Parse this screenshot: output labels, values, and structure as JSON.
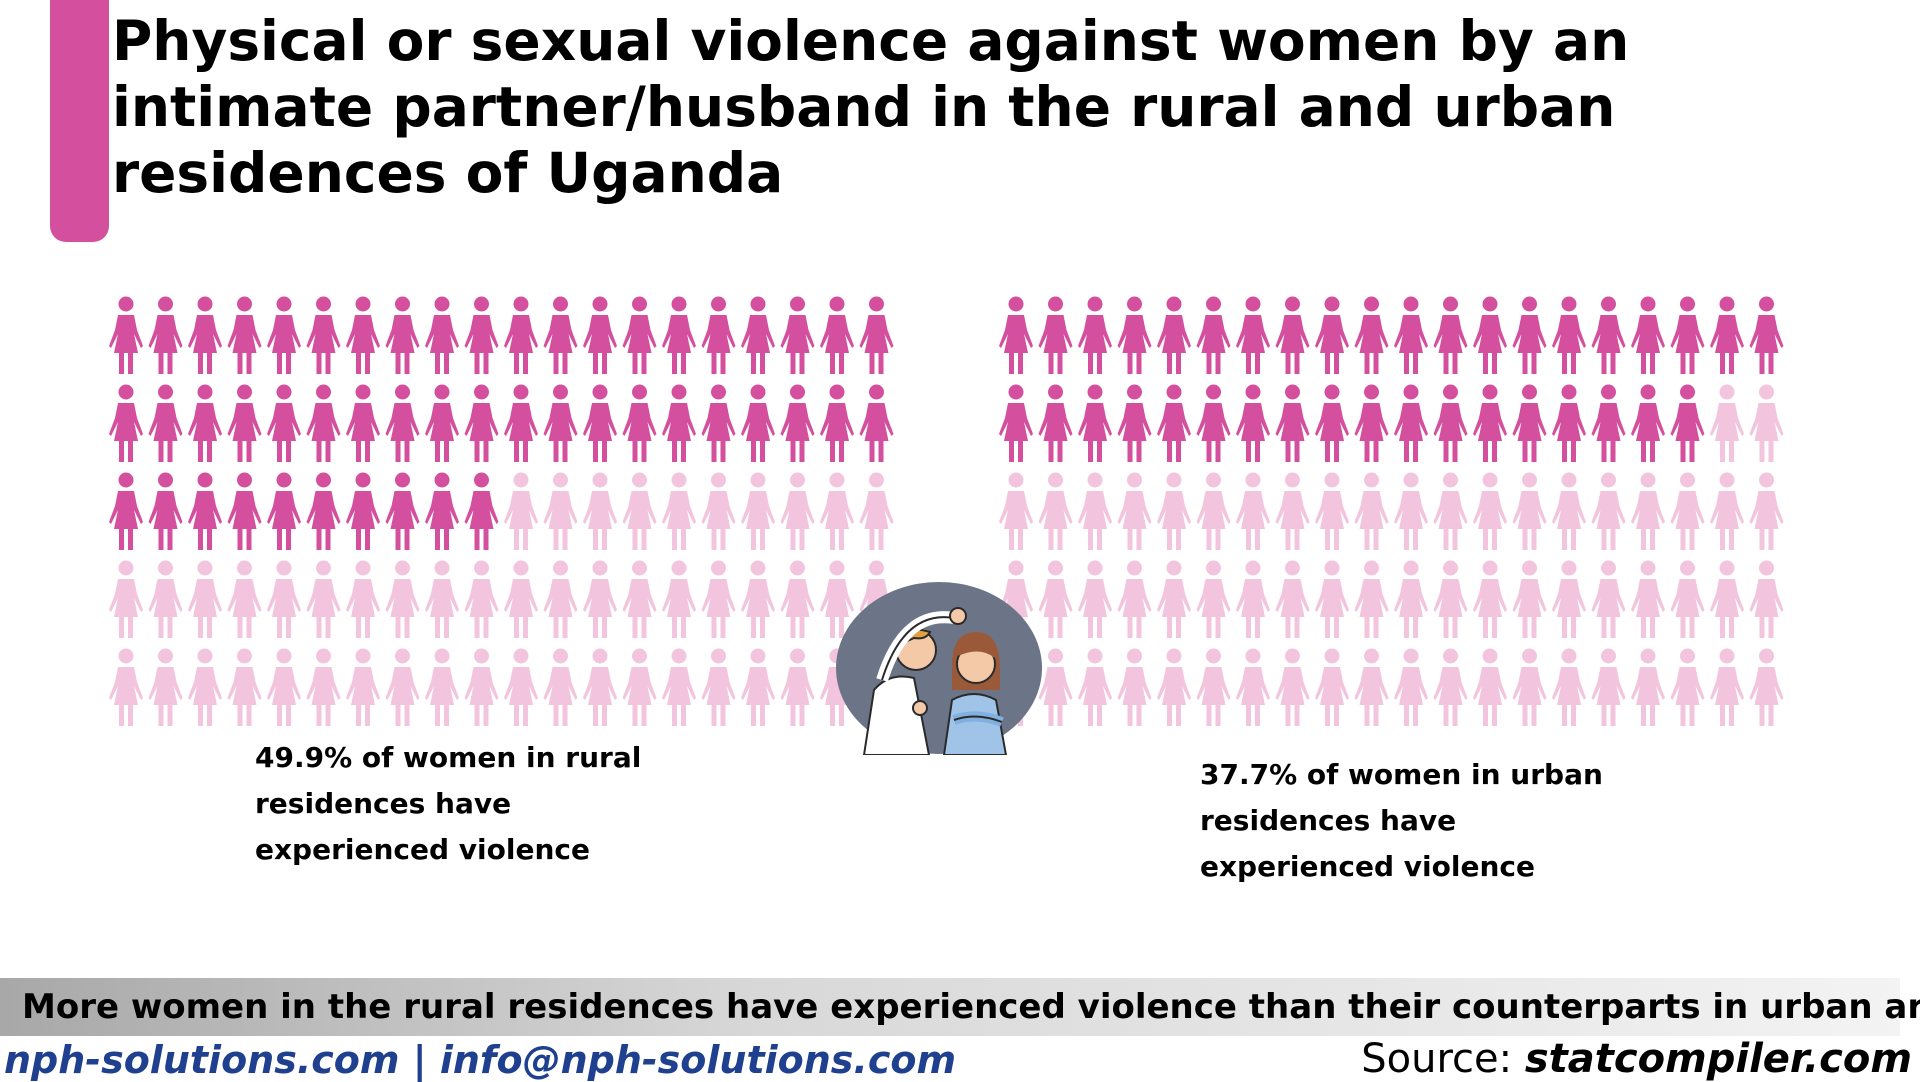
{
  "header": {
    "title": "Physical or sexual violence against women by an intimate partner/husband in the rural and urban residences of Uganda"
  },
  "colors": {
    "accent": "#d44f9e",
    "filled": "#d44f9e",
    "unfilled": "#f3c4de"
  },
  "chart_data": {
    "type": "waffle",
    "title": "Physical or sexual violence against women by an intimate partner/husband in the rural and urban residences of Uganda",
    "unit": "%",
    "icon": "woman-icon",
    "grid": {
      "rows": 5,
      "cols": 20
    },
    "panels": [
      {
        "name": "rural",
        "value": 49.9,
        "filled_icons": 50,
        "total_icons": 100,
        "caption": "49.9% of women in rural residences have experienced violence"
      },
      {
        "name": "urban",
        "value": 37.7,
        "filled_icons": 38,
        "total_icons": 100,
        "caption": "37.7% of women in urban residences have experienced violence"
      }
    ]
  },
  "illustration": {
    "icon": "domestic-violence-illustration"
  },
  "banner": {
    "text": "More women in the rural residences have experienced violence than their counterparts in urban areas"
  },
  "footer": {
    "contact": "nph-solutions.com | info@nph-solutions.com",
    "source_label": "Source:",
    "source_value": "statcompiler.com"
  }
}
